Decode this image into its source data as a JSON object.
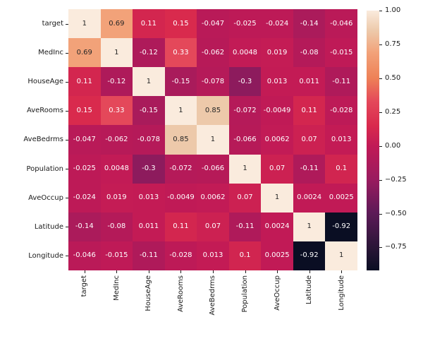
{
  "figure": {
    "background": "#ffffff",
    "kind": "correlation-heatmap"
  },
  "chart_data": {
    "type": "heatmap",
    "title": "",
    "xlabel": "",
    "ylabel": "",
    "labels": [
      "target",
      "MedInc",
      "HouseAge",
      "AveRooms",
      "AveBedrms",
      "Population",
      "AveOccup",
      "Latitude",
      "Longitude"
    ],
    "matrix_text": [
      [
        "1",
        "0.69",
        "0.11",
        "0.15",
        "-0.047",
        "-0.025",
        "-0.024",
        "-0.14",
        "-0.046"
      ],
      [
        "0.69",
        "1",
        "-0.12",
        "0.33",
        "-0.062",
        "0.0048",
        "0.019",
        "-0.08",
        "-0.015"
      ],
      [
        "0.11",
        "-0.12",
        "1",
        "-0.15",
        "-0.078",
        "-0.3",
        "0.013",
        "0.011",
        "-0.11"
      ],
      [
        "0.15",
        "0.33",
        "-0.15",
        "1",
        "0.85",
        "-0.072",
        "-0.0049",
        "0.11",
        "-0.028"
      ],
      [
        "-0.047",
        "-0.062",
        "-0.078",
        "0.85",
        "1",
        "-0.066",
        "0.0062",
        "0.07",
        "0.013"
      ],
      [
        "-0.025",
        "0.0048",
        "-0.3",
        "-0.072",
        "-0.066",
        "1",
        "0.07",
        "-0.11",
        "0.1"
      ],
      [
        "-0.024",
        "0.019",
        "0.013",
        "-0.0049",
        "0.0062",
        "0.07",
        "1",
        "0.0024",
        "0.0025"
      ],
      [
        "-0.14",
        "-0.08",
        "0.011",
        "0.11",
        "0.07",
        "-0.11",
        "0.0024",
        "1",
        "-0.92"
      ],
      [
        "-0.046",
        "-0.015",
        "-0.11",
        "-0.028",
        "0.013",
        "0.1",
        "0.0025",
        "-0.92",
        "1"
      ]
    ],
    "vmin": -0.92,
    "vmax": 1.0,
    "colormap": {
      "name": "rocket",
      "stops": [
        [
          -0.92,
          "#0a0e23"
        ],
        [
          -0.75,
          "#2a1637"
        ],
        [
          -0.5,
          "#5c1a57"
        ],
        [
          -0.25,
          "#991b5f"
        ],
        [
          0.0,
          "#c11a56"
        ],
        [
          0.15,
          "#d92a4d"
        ],
        [
          0.33,
          "#e4485a"
        ],
        [
          0.5,
          "#ee8157"
        ],
        [
          0.69,
          "#f2a279"
        ],
        [
          0.85,
          "#edc9aa"
        ],
        [
          1.0,
          "#faebdd"
        ]
      ]
    },
    "annotation_colors": {
      "dark": "#262626",
      "light": "#ffffff",
      "luminance_threshold": 0.408
    },
    "colorbar_ticks": [
      {
        "label": "1.00",
        "value": 1.0
      },
      {
        "label": "0.75",
        "value": 0.75
      },
      {
        "label": "0.50",
        "value": 0.5
      },
      {
        "label": "0.25",
        "value": 0.25
      },
      {
        "label": "0.00",
        "value": 0.0
      },
      {
        "label": "−0.25",
        "value": -0.25
      },
      {
        "label": "−0.50",
        "value": -0.5
      },
      {
        "label": "−0.75",
        "value": -0.75
      }
    ],
    "legend_position": "right",
    "grid": false
  }
}
